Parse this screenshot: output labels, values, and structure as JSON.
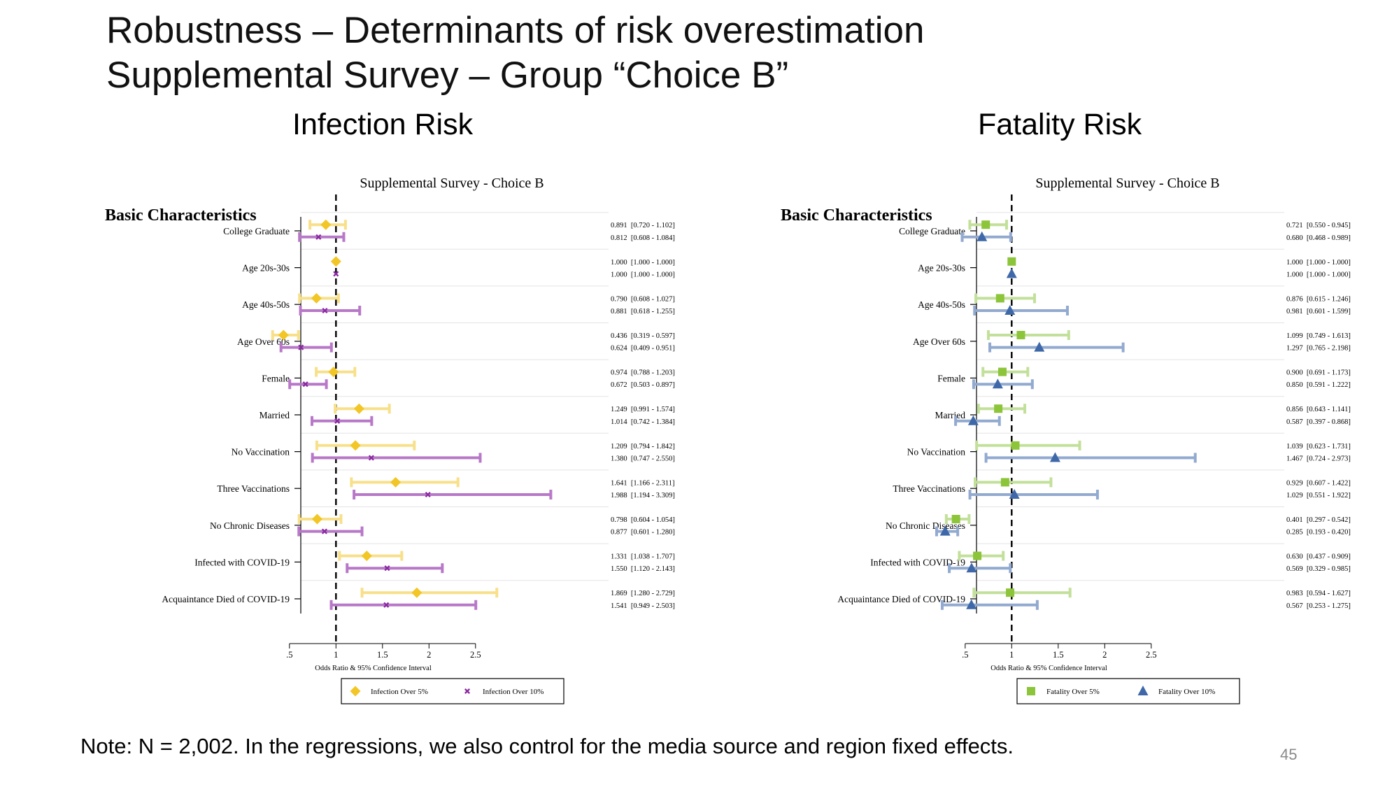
{
  "slide": {
    "title_line1": "Robustness – Determinants of risk overestimation",
    "title_line2": "Supplemental Survey – Group “Choice B”",
    "note": "Note: N = 2,002. In the regressions, we also control for the media source and region fixed effects.",
    "page_number": "45"
  },
  "panels": {
    "left_heading": "Infection Risk",
    "right_heading": "Fatality Risk"
  },
  "chart_data": [
    {
      "type": "forest",
      "title": "Supplemental Survey - Choice B",
      "section_label": "Basic Characteristics",
      "xlabel": "Odds Ratio & 95% Confidence Interval",
      "xlim": [
        0.45,
        2.6
      ],
      "ticks": [
        0.5,
        1,
        1.5,
        2,
        2.5
      ],
      "tick_labels": [
        ".5",
        "1",
        "1.5",
        "2",
        "2.5"
      ],
      "reference_line": 1,
      "legend_placement": "bottom",
      "categories": [
        "College Graduate",
        "Age 20s-30s",
        "Age 40s-50s",
        "Age Over 60s",
        "Female",
        "Married",
        "No Vaccination",
        "Three Vaccinations",
        "No Chronic Diseases",
        "Infected with COVID-19",
        "Acquaintance Died of COVID-19"
      ],
      "series": [
        {
          "name": "Infection Over 5%",
          "marker": "diamond",
          "color": "#f2c626",
          "ci_color": "#f8e08a",
          "or": [
            0.891,
            1.0,
            0.79,
            0.436,
            0.974,
            1.249,
            1.209,
            1.641,
            0.798,
            1.331,
            1.869
          ],
          "lo": [
            0.72,
            1.0,
            0.608,
            0.319,
            0.788,
            0.991,
            0.794,
            1.166,
            0.604,
            1.038,
            1.28
          ],
          "hi": [
            1.102,
            1.0,
            1.027,
            0.597,
            1.203,
            1.574,
            1.842,
            2.311,
            1.054,
            1.707,
            2.729
          ],
          "labels": [
            "0.891  [0.720 - 1.102]",
            "1.000  [1.000 - 1.000]",
            "0.790  [0.608 - 1.027]",
            "0.436  [0.319 - 0.597]",
            "0.974  [0.788 - 1.203]",
            "1.249  [0.991 - 1.574]",
            "1.209  [0.794 - 1.842]",
            "1.641  [1.166 - 2.311]",
            "0.798  [0.604 - 1.054]",
            "1.331  [1.038 - 1.707]",
            "1.869  [1.280 - 2.729]"
          ]
        },
        {
          "name": "Infection Over 10%",
          "marker": "x",
          "color": "#8a2aa0",
          "ci_color": "#b878c8",
          "or": [
            0.812,
            1.0,
            0.881,
            0.624,
            0.672,
            1.014,
            1.38,
            1.988,
            0.877,
            1.55,
            1.541
          ],
          "lo": [
            0.608,
            1.0,
            0.618,
            0.409,
            0.503,
            0.742,
            0.747,
            1.194,
            0.601,
            1.12,
            0.949
          ],
          "hi": [
            1.084,
            1.0,
            1.255,
            0.951,
            0.897,
            1.384,
            2.55,
            3.309,
            1.28,
            2.143,
            2.503
          ],
          "labels": [
            "0.812  [0.608 - 1.084]",
            "1.000  [1.000 - 1.000]",
            "0.881  [0.618 - 1.255]",
            "0.624  [0.409 - 0.951]",
            "0.672  [0.503 - 0.897]",
            "1.014  [0.742 - 1.384]",
            "1.380  [0.747 - 2.550]",
            "1.988  [1.194 - 3.309]",
            "0.877  [0.601 - 1.280]",
            "1.550  [1.120 - 2.143]",
            "1.541  [0.949 - 2.503]"
          ]
        }
      ]
    },
    {
      "type": "forest",
      "title": "Supplemental Survey - Choice B",
      "section_label": "Basic Characteristics",
      "xlabel": "Odds Ratio & 95% Confidence Interval",
      "xlim": [
        0.45,
        2.6
      ],
      "ticks": [
        0.5,
        1,
        1.5,
        2,
        2.5
      ],
      "tick_labels": [
        ".5",
        "1",
        "1.5",
        "2",
        "2.5"
      ],
      "reference_line": 1,
      "legend_placement": "bottom",
      "categories": [
        "College Graduate",
        "Age 20s-30s",
        "Age 40s-50s",
        "Age Over 60s",
        "Female",
        "Married",
        "No Vaccination",
        "Three Vaccinations",
        "No Chronic Diseases",
        "Infected with COVID-19",
        "Acquaintance Died of COVID-19"
      ],
      "series": [
        {
          "name": "Fatality Over 5%",
          "marker": "square",
          "color": "#8cc43a",
          "ci_color": "#c2e09a",
          "or": [
            0.721,
            1.0,
            0.876,
            1.099,
            0.9,
            0.856,
            1.039,
            0.929,
            0.401,
            0.63,
            0.983
          ],
          "lo": [
            0.55,
            1.0,
            0.615,
            0.749,
            0.691,
            0.643,
            0.623,
            0.607,
            0.297,
            0.437,
            0.594
          ],
          "hi": [
            0.945,
            1.0,
            1.246,
            1.613,
            1.173,
            1.141,
            1.731,
            1.422,
            0.542,
            0.909,
            1.627
          ],
          "labels": [
            "0.721  [0.550 - 0.945]",
            "1.000  [1.000 - 1.000]",
            "0.876  [0.615 - 1.246]",
            "1.099  [0.749 - 1.613]",
            "0.900  [0.691 - 1.173]",
            "0.856  [0.643 - 1.141]",
            "1.039  [0.623 - 1.731]",
            "0.929  [0.607 - 1.422]",
            "0.401  [0.297 - 0.542]",
            "0.630  [0.437 - 0.909]",
            "0.983  [0.594 - 1.627]"
          ]
        },
        {
          "name": "Fatality Over 10%",
          "marker": "triangle",
          "color": "#3f68a8",
          "ci_color": "#92aad0",
          "or": [
            0.68,
            1.0,
            0.981,
            1.297,
            0.85,
            0.587,
            1.467,
            1.029,
            0.285,
            0.569,
            0.567
          ],
          "lo": [
            0.468,
            1.0,
            0.601,
            0.765,
            0.591,
            0.397,
            0.724,
            0.551,
            0.193,
            0.329,
            0.253
          ],
          "hi": [
            0.989,
            1.0,
            1.599,
            2.198,
            1.222,
            0.868,
            2.973,
            1.922,
            0.42,
            0.985,
            1.275
          ],
          "labels": [
            "0.680  [0.468 - 0.989]",
            "1.000  [1.000 - 1.000]",
            "0.981  [0.601 - 1.599]",
            "1.297  [0.765 - 2.198]",
            "0.850  [0.591 - 1.222]",
            "0.587  [0.397 - 0.868]",
            "1.467  [0.724 - 2.973]",
            "1.029  [0.551 - 1.922]",
            "0.285  [0.193 - 0.420]",
            "0.569  [0.329 - 0.985]",
            "0.567  [0.253 - 1.275]"
          ]
        }
      ]
    }
  ]
}
